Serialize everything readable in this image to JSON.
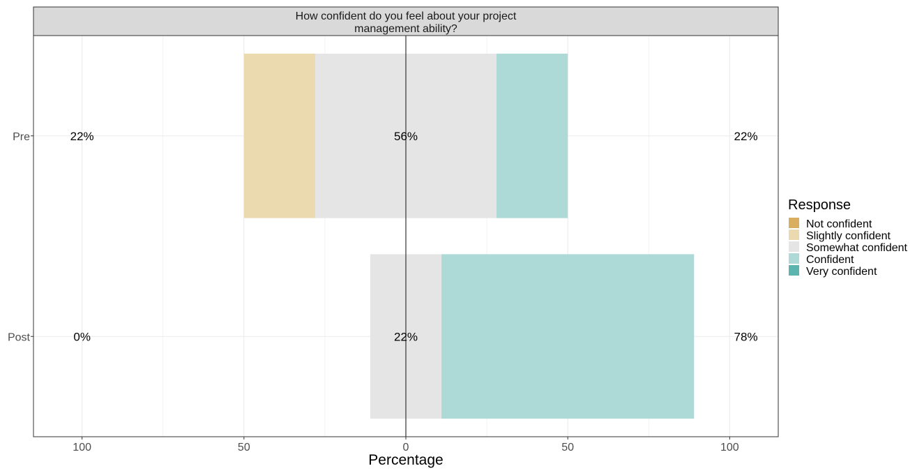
{
  "chart_data": {
    "type": "bar",
    "orientation": "horizontal-diverging",
    "title": "How confident do you feel about your project management ability?",
    "title_lines": [
      "How confident do you feel about your project",
      "management ability?"
    ],
    "xlabel": "Percentage",
    "ylabel": "",
    "xlim": [
      -115,
      115
    ],
    "x_ticks": [
      -100,
      -50,
      0,
      50,
      100
    ],
    "x_tick_labels": [
      "100",
      "50",
      "0",
      "50",
      "100"
    ],
    "grid": true,
    "legend": {
      "title": "Response",
      "position": "right",
      "entries": [
        {
          "label": "Not confident",
          "color": "#D9AE5E"
        },
        {
          "label": "Slightly confident",
          "color": "#EBD9B0"
        },
        {
          "label": "Somewhat confident",
          "color": "#E5E5E5"
        },
        {
          "label": "Confident",
          "color": "#ADD9D6"
        },
        {
          "label": "Very confident",
          "color": "#5BB5AE"
        }
      ]
    },
    "categories": [
      "Pre",
      "Post"
    ],
    "series": [
      {
        "name": "Not confident",
        "values": [
          0,
          0
        ]
      },
      {
        "name": "Slightly confident",
        "values": [
          22,
          0
        ]
      },
      {
        "name": "Somewhat confident",
        "values": [
          56,
          22
        ]
      },
      {
        "name": "Confident",
        "values": [
          22,
          78
        ]
      },
      {
        "name": "Very confident",
        "values": [
          0,
          0
        ]
      }
    ],
    "annotations": [
      {
        "category": "Pre",
        "left": "22%",
        "center": "56%",
        "right": "22%"
      },
      {
        "category": "Post",
        "left": "0%",
        "center": "22%",
        "right": "78%"
      }
    ]
  }
}
